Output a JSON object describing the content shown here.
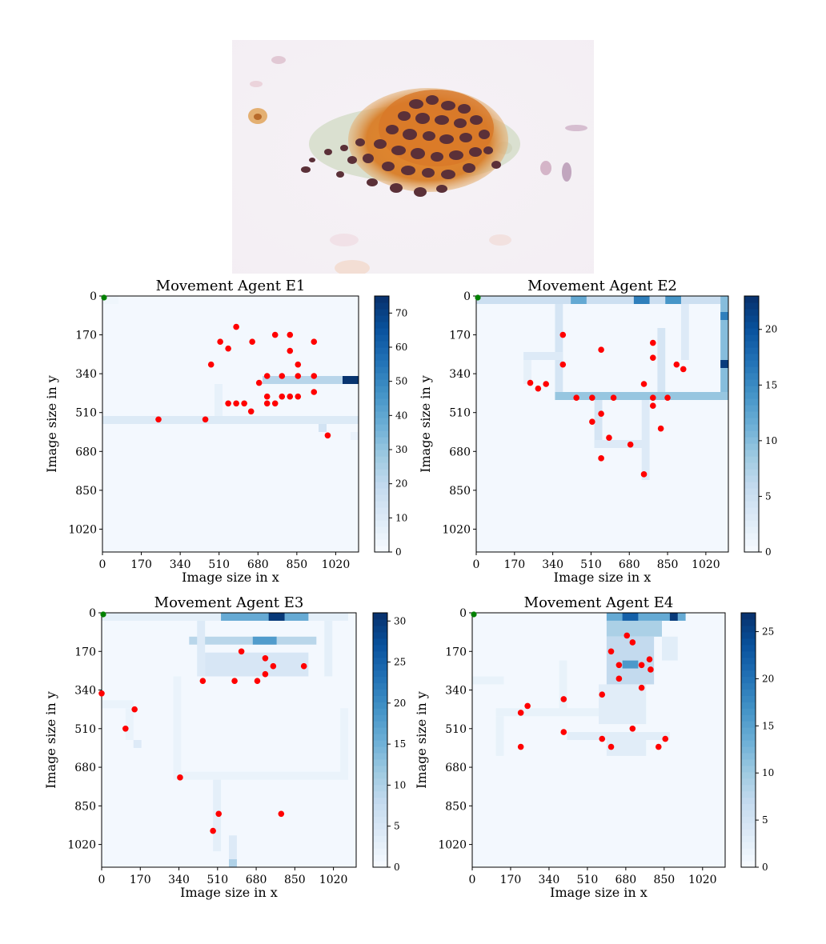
{
  "chart_data": [
    {
      "type": "heatmap",
      "title": "Movement Agent E1",
      "xlabel": "Image size in x",
      "ylabel": "Image size in y",
      "xlim": [
        0,
        1120
      ],
      "ylim": [
        0,
        1120
      ],
      "ticks": [
        0,
        170,
        340,
        510,
        680,
        850,
        1020
      ],
      "colorbar_ticks": [
        0,
        10,
        20,
        30,
        40,
        50,
        60,
        70
      ],
      "colorbar_max": 75,
      "start": [
        0,
        0
      ],
      "paths": [
        {
          "x": 0,
          "y": 0,
          "w": 70,
          "h": 35,
          "v": 3
        },
        {
          "x": 0,
          "y": 525,
          "w": 1120,
          "h": 35,
          "v": 10
        },
        {
          "x": 490,
          "y": 385,
          "w": 35,
          "h": 140,
          "v": 6
        },
        {
          "x": 700,
          "y": 350,
          "w": 420,
          "h": 35,
          "v": 22
        },
        {
          "x": 1050,
          "y": 350,
          "w": 70,
          "h": 35,
          "v": 74
        },
        {
          "x": 945,
          "y": 560,
          "w": 35,
          "h": 35,
          "v": 14
        },
        {
          "x": 1085,
          "y": 595,
          "w": 35,
          "h": 35,
          "v": 5
        }
      ],
      "points": [
        [
          245,
          540
        ],
        [
          450,
          540
        ],
        [
          585,
          135
        ],
        [
          515,
          200
        ],
        [
          550,
          230
        ],
        [
          655,
          200
        ],
        [
          755,
          170
        ],
        [
          820,
          170
        ],
        [
          925,
          200
        ],
        [
          475,
          300
        ],
        [
          820,
          240
        ],
        [
          855,
          300
        ],
        [
          685,
          380
        ],
        [
          720,
          350
        ],
        [
          785,
          350
        ],
        [
          855,
          350
        ],
        [
          925,
          350
        ],
        [
          925,
          420
        ],
        [
          720,
          440
        ],
        [
          785,
          440
        ],
        [
          820,
          440
        ],
        [
          855,
          440
        ],
        [
          550,
          470
        ],
        [
          585,
          470
        ],
        [
          620,
          470
        ],
        [
          720,
          470
        ],
        [
          755,
          470
        ],
        [
          650,
          505
        ],
        [
          985,
          610
        ]
      ]
    },
    {
      "type": "heatmap",
      "title": "Movement Agent E2",
      "xlabel": "Image size in x",
      "ylabel": "Image size in y",
      "xlim": [
        0,
        1120
      ],
      "ylim": [
        0,
        1120
      ],
      "ticks": [
        0,
        170,
        340,
        510,
        680,
        850,
        1020
      ],
      "colorbar_ticks": [
        0,
        5,
        10,
        15,
        20
      ],
      "colorbar_max": 23,
      "start": [
        0,
        0
      ],
      "paths": [
        {
          "x": 0,
          "y": 0,
          "w": 1120,
          "h": 35,
          "v": 5
        },
        {
          "x": 420,
          "y": 0,
          "w": 70,
          "h": 35,
          "v": 12
        },
        {
          "x": 700,
          "y": 0,
          "w": 70,
          "h": 35,
          "v": 16
        },
        {
          "x": 840,
          "y": 0,
          "w": 70,
          "h": 35,
          "v": 14
        },
        {
          "x": 1085,
          "y": 0,
          "w": 35,
          "h": 455,
          "v": 10
        },
        {
          "x": 1085,
          "y": 70,
          "w": 35,
          "h": 35,
          "v": 16
        },
        {
          "x": 1085,
          "y": 280,
          "w": 35,
          "h": 35,
          "v": 22
        },
        {
          "x": 350,
          "y": 420,
          "w": 770,
          "h": 35,
          "v": 9
        },
        {
          "x": 350,
          "y": 35,
          "w": 35,
          "h": 385,
          "v": 4
        },
        {
          "x": 210,
          "y": 245,
          "w": 175,
          "h": 35,
          "v": 3
        },
        {
          "x": 210,
          "y": 280,
          "w": 35,
          "h": 105,
          "v": 2
        },
        {
          "x": 525,
          "y": 455,
          "w": 35,
          "h": 210,
          "v": 4
        },
        {
          "x": 525,
          "y": 630,
          "w": 245,
          "h": 35,
          "v": 3
        },
        {
          "x": 735,
          "y": 455,
          "w": 35,
          "h": 350,
          "v": 3
        },
        {
          "x": 805,
          "y": 140,
          "w": 35,
          "h": 280,
          "v": 4
        },
        {
          "x": 910,
          "y": 35,
          "w": 35,
          "h": 245,
          "v": 3
        }
      ],
      "points": [
        [
          385,
          170
        ],
        [
          555,
          235
        ],
        [
          785,
          205
        ],
        [
          785,
          270
        ],
        [
          385,
          300
        ],
        [
          890,
          300
        ],
        [
          920,
          320
        ],
        [
          240,
          380
        ],
        [
          275,
          405
        ],
        [
          310,
          385
        ],
        [
          745,
          385
        ],
        [
          445,
          445
        ],
        [
          515,
          445
        ],
        [
          610,
          445
        ],
        [
          785,
          445
        ],
        [
          850,
          445
        ],
        [
          785,
          480
        ],
        [
          555,
          515
        ],
        [
          515,
          550
        ],
        [
          820,
          580
        ],
        [
          590,
          620
        ],
        [
          685,
          650
        ],
        [
          555,
          710
        ],
        [
          745,
          780
        ]
      ]
    },
    {
      "type": "heatmap",
      "title": "Movement Agent E3",
      "xlabel": "Image size in x",
      "ylabel": "Image size in y",
      "xlim": [
        0,
        1120
      ],
      "ylim": [
        0,
        1120
      ],
      "ticks": [
        0,
        170,
        340,
        510,
        680,
        850,
        1020
      ],
      "colorbar_ticks": [
        0,
        5,
        10,
        15,
        20,
        25,
        30
      ],
      "colorbar_max": 31,
      "start": [
        0,
        0
      ],
      "paths": [
        {
          "x": 0,
          "y": 0,
          "w": 1085,
          "h": 35,
          "v": 3
        },
        {
          "x": 525,
          "y": 0,
          "w": 385,
          "h": 35,
          "v": 16
        },
        {
          "x": 735,
          "y": 0,
          "w": 70,
          "h": 35,
          "v": 30
        },
        {
          "x": 385,
          "y": 105,
          "w": 560,
          "h": 35,
          "v": 9
        },
        {
          "x": 665,
          "y": 105,
          "w": 105,
          "h": 35,
          "v": 18
        },
        {
          "x": 420,
          "y": 35,
          "w": 35,
          "h": 245,
          "v": 4
        },
        {
          "x": 980,
          "y": 35,
          "w": 35,
          "h": 245,
          "v": 3
        },
        {
          "x": 455,
          "y": 175,
          "w": 455,
          "h": 105,
          "v": 5
        },
        {
          "x": 0,
          "y": 385,
          "w": 140,
          "h": 35,
          "v": 2
        },
        {
          "x": 105,
          "y": 420,
          "w": 35,
          "h": 140,
          "v": 2
        },
        {
          "x": 140,
          "y": 560,
          "w": 35,
          "h": 35,
          "v": 4
        },
        {
          "x": 315,
          "y": 280,
          "w": 35,
          "h": 420,
          "v": 2
        },
        {
          "x": 315,
          "y": 700,
          "w": 770,
          "h": 35,
          "v": 2
        },
        {
          "x": 1050,
          "y": 420,
          "w": 35,
          "h": 315,
          "v": 2
        },
        {
          "x": 490,
          "y": 735,
          "w": 35,
          "h": 315,
          "v": 3
        },
        {
          "x": 560,
          "y": 980,
          "w": 35,
          "h": 140,
          "v": 4
        },
        {
          "x": 560,
          "y": 1085,
          "w": 35,
          "h": 35,
          "v": 10
        }
      ],
      "points": [
        [
          615,
          170
        ],
        [
          720,
          200
        ],
        [
          755,
          235
        ],
        [
          890,
          235
        ],
        [
          720,
          270
        ],
        [
          445,
          300
        ],
        [
          585,
          300
        ],
        [
          685,
          300
        ],
        [
          0,
          355
        ],
        [
          145,
          425
        ],
        [
          105,
          510
        ],
        [
          345,
          725
        ],
        [
          515,
          885
        ],
        [
          790,
          885
        ],
        [
          490,
          960
        ]
      ]
    },
    {
      "type": "heatmap",
      "title": "Movement Agent E4",
      "xlabel": "Image size in x",
      "ylabel": "Image size in y",
      "xlim": [
        0,
        1120
      ],
      "ylim": [
        0,
        1120
      ],
      "ticks": [
        0,
        170,
        340,
        510,
        680,
        850,
        1020
      ],
      "colorbar_ticks": [
        0,
        5,
        10,
        15,
        20,
        25
      ],
      "colorbar_max": 27,
      "start": [
        0,
        0
      ],
      "paths": [
        {
          "x": 595,
          "y": 0,
          "w": 350,
          "h": 35,
          "v": 14
        },
        {
          "x": 665,
          "y": 0,
          "w": 70,
          "h": 35,
          "v": 22
        },
        {
          "x": 875,
          "y": 0,
          "w": 35,
          "h": 35,
          "v": 26
        },
        {
          "x": 595,
          "y": 35,
          "w": 245,
          "h": 70,
          "v": 9
        },
        {
          "x": 595,
          "y": 105,
          "w": 210,
          "h": 210,
          "v": 7
        },
        {
          "x": 665,
          "y": 210,
          "w": 70,
          "h": 35,
          "v": 16
        },
        {
          "x": 560,
          "y": 315,
          "w": 210,
          "h": 175,
          "v": 3
        },
        {
          "x": 105,
          "y": 420,
          "w": 455,
          "h": 35,
          "v": 2
        },
        {
          "x": 105,
          "y": 455,
          "w": 35,
          "h": 175,
          "v": 2
        },
        {
          "x": 420,
          "y": 525,
          "w": 455,
          "h": 35,
          "v": 3
        },
        {
          "x": 595,
          "y": 560,
          "w": 175,
          "h": 70,
          "v": 3
        },
        {
          "x": 385,
          "y": 210,
          "w": 35,
          "h": 210,
          "v": 2
        },
        {
          "x": 0,
          "y": 280,
          "w": 140,
          "h": 35,
          "v": 2
        },
        {
          "x": 840,
          "y": 105,
          "w": 70,
          "h": 105,
          "v": 3
        }
      ],
      "points": [
        [
          685,
          100
        ],
        [
          710,
          130
        ],
        [
          615,
          170
        ],
        [
          785,
          205
        ],
        [
          650,
          230
        ],
        [
          750,
          230
        ],
        [
          790,
          250
        ],
        [
          650,
          290
        ],
        [
          750,
          330
        ],
        [
          575,
          360
        ],
        [
          405,
          380
        ],
        [
          245,
          410
        ],
        [
          215,
          440
        ],
        [
          710,
          510
        ],
        [
          405,
          525
        ],
        [
          575,
          555
        ],
        [
          855,
          555
        ],
        [
          215,
          590
        ],
        [
          615,
          590
        ],
        [
          825,
          590
        ]
      ]
    }
  ]
}
